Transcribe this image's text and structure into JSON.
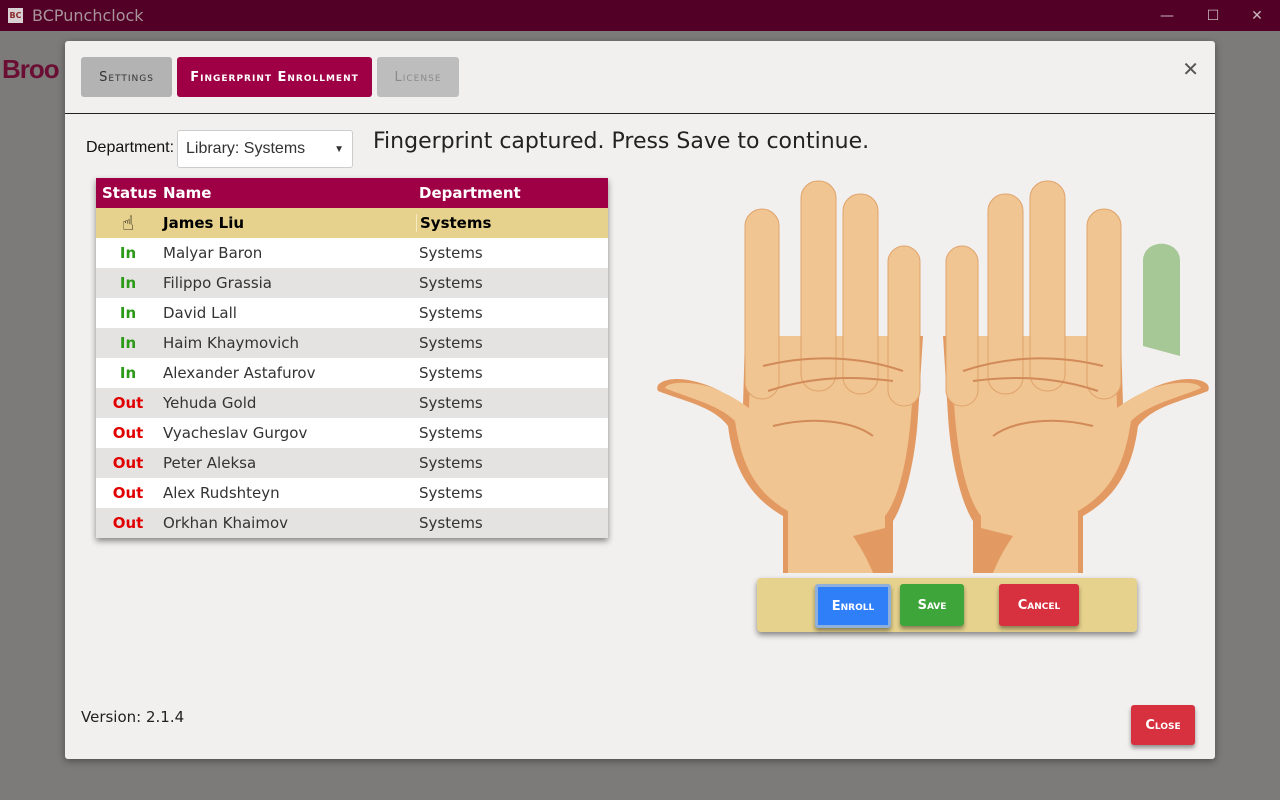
{
  "window": {
    "title": "BCPunchclock",
    "icon_text": "BC",
    "background_text": "Broo",
    "controls": [
      "minimize",
      "maximize",
      "close"
    ]
  },
  "tabs": [
    {
      "label": "Settings",
      "state": "normal"
    },
    {
      "label": "Fingerprint Enrollment",
      "state": "active"
    },
    {
      "label": "License",
      "state": "disabled"
    }
  ],
  "department": {
    "label": "Department:",
    "value": "Library: Systems"
  },
  "message": "Fingerprint captured. Press Save to continue.",
  "table": {
    "columns": [
      "Status",
      "Name",
      "Department"
    ],
    "rows": [
      {
        "status": "pointer",
        "name": "James Liu",
        "department": "Systems",
        "selected": true
      },
      {
        "status": "In",
        "name": "Malyar Baron",
        "department": "Systems"
      },
      {
        "status": "In",
        "name": "Filippo Grassia",
        "department": "Systems"
      },
      {
        "status": "In",
        "name": "David Lall",
        "department": "Systems"
      },
      {
        "status": "In",
        "name": "Haim Khaymovich",
        "department": "Systems"
      },
      {
        "status": "In",
        "name": "Alexander Astafurov",
        "department": "Systems"
      },
      {
        "status": "Out",
        "name": "Yehuda Gold",
        "department": "Systems"
      },
      {
        "status": "Out",
        "name": "Vyacheslav Gurgov",
        "department": "Systems"
      },
      {
        "status": "Out",
        "name": "Peter Aleksa",
        "department": "Systems"
      },
      {
        "status": "Out",
        "name": "Alex Rudshteyn",
        "department": "Systems"
      },
      {
        "status": "Out",
        "name": "Orkhan Khaimov",
        "department": "Systems"
      }
    ]
  },
  "hands": {
    "captured_finger": "right-pinky",
    "captured_color": "#a6c796"
  },
  "buttons": {
    "enroll": "Enroll",
    "save": "Save",
    "cancel": "Cancel",
    "close": "Close"
  },
  "version": "Version: 2.1.4",
  "colors": {
    "accent": "#9f0045",
    "titlebar": "#520026",
    "enroll": "#2f7ff8",
    "save": "#3ea53a",
    "cancel": "#d7303f"
  }
}
